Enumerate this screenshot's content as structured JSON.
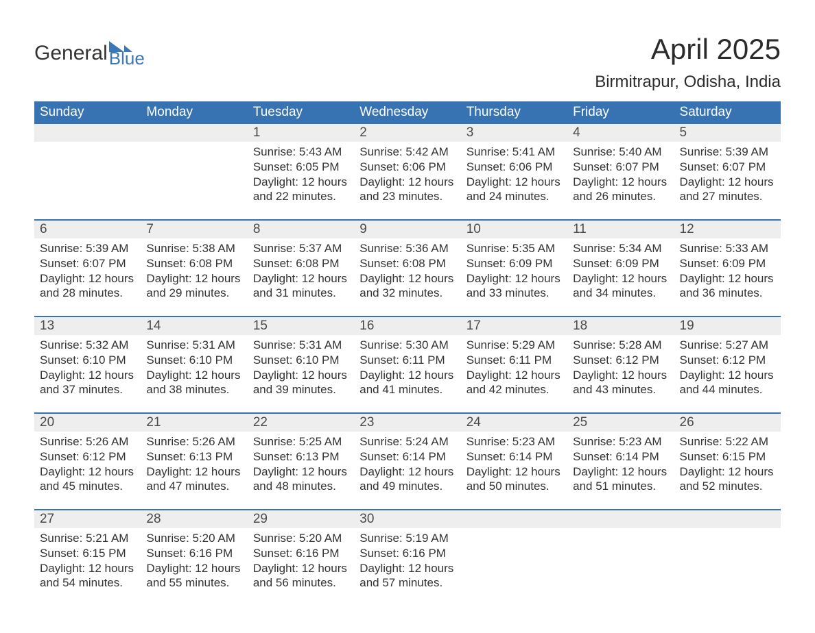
{
  "brand": {
    "word1": "General",
    "word2": "Blue",
    "text_color": "#333333",
    "accent_color": "#3b78b5"
  },
  "header": {
    "title": "April 2025",
    "location": "Birmitrapur, Odisha, India"
  },
  "calendar": {
    "column_headers": [
      "Sunday",
      "Monday",
      "Tuesday",
      "Wednesday",
      "Thursday",
      "Friday",
      "Saturday"
    ],
    "header_bg": "#3773b3",
    "header_text_color": "#ffffff",
    "daynum_bg": "#eeeeee",
    "week_border_color": "#3773b3",
    "body_text_color": "#333333",
    "fontsize_header": 19,
    "fontsize_daynum": 19,
    "fontsize_body": 17,
    "weeks": [
      [
        {
          "day": "",
          "sunrise": "",
          "sunset": "",
          "daylight": ""
        },
        {
          "day": "",
          "sunrise": "",
          "sunset": "",
          "daylight": ""
        },
        {
          "day": "1",
          "sunrise": "Sunrise: 5:43 AM",
          "sunset": "Sunset: 6:05 PM",
          "daylight": "Daylight: 12 hours and 22 minutes."
        },
        {
          "day": "2",
          "sunrise": "Sunrise: 5:42 AM",
          "sunset": "Sunset: 6:06 PM",
          "daylight": "Daylight: 12 hours and 23 minutes."
        },
        {
          "day": "3",
          "sunrise": "Sunrise: 5:41 AM",
          "sunset": "Sunset: 6:06 PM",
          "daylight": "Daylight: 12 hours and 24 minutes."
        },
        {
          "day": "4",
          "sunrise": "Sunrise: 5:40 AM",
          "sunset": "Sunset: 6:07 PM",
          "daylight": "Daylight: 12 hours and 26 minutes."
        },
        {
          "day": "5",
          "sunrise": "Sunrise: 5:39 AM",
          "sunset": "Sunset: 6:07 PM",
          "daylight": "Daylight: 12 hours and 27 minutes."
        }
      ],
      [
        {
          "day": "6",
          "sunrise": "Sunrise: 5:39 AM",
          "sunset": "Sunset: 6:07 PM",
          "daylight": "Daylight: 12 hours and 28 minutes."
        },
        {
          "day": "7",
          "sunrise": "Sunrise: 5:38 AM",
          "sunset": "Sunset: 6:08 PM",
          "daylight": "Daylight: 12 hours and 29 minutes."
        },
        {
          "day": "8",
          "sunrise": "Sunrise: 5:37 AM",
          "sunset": "Sunset: 6:08 PM",
          "daylight": "Daylight: 12 hours and 31 minutes."
        },
        {
          "day": "9",
          "sunrise": "Sunrise: 5:36 AM",
          "sunset": "Sunset: 6:08 PM",
          "daylight": "Daylight: 12 hours and 32 minutes."
        },
        {
          "day": "10",
          "sunrise": "Sunrise: 5:35 AM",
          "sunset": "Sunset: 6:09 PM",
          "daylight": "Daylight: 12 hours and 33 minutes."
        },
        {
          "day": "11",
          "sunrise": "Sunrise: 5:34 AM",
          "sunset": "Sunset: 6:09 PM",
          "daylight": "Daylight: 12 hours and 34 minutes."
        },
        {
          "day": "12",
          "sunrise": "Sunrise: 5:33 AM",
          "sunset": "Sunset: 6:09 PM",
          "daylight": "Daylight: 12 hours and 36 minutes."
        }
      ],
      [
        {
          "day": "13",
          "sunrise": "Sunrise: 5:32 AM",
          "sunset": "Sunset: 6:10 PM",
          "daylight": "Daylight: 12 hours and 37 minutes."
        },
        {
          "day": "14",
          "sunrise": "Sunrise: 5:31 AM",
          "sunset": "Sunset: 6:10 PM",
          "daylight": "Daylight: 12 hours and 38 minutes."
        },
        {
          "day": "15",
          "sunrise": "Sunrise: 5:31 AM",
          "sunset": "Sunset: 6:10 PM",
          "daylight": "Daylight: 12 hours and 39 minutes."
        },
        {
          "day": "16",
          "sunrise": "Sunrise: 5:30 AM",
          "sunset": "Sunset: 6:11 PM",
          "daylight": "Daylight: 12 hours and 41 minutes."
        },
        {
          "day": "17",
          "sunrise": "Sunrise: 5:29 AM",
          "sunset": "Sunset: 6:11 PM",
          "daylight": "Daylight: 12 hours and 42 minutes."
        },
        {
          "day": "18",
          "sunrise": "Sunrise: 5:28 AM",
          "sunset": "Sunset: 6:12 PM",
          "daylight": "Daylight: 12 hours and 43 minutes."
        },
        {
          "day": "19",
          "sunrise": "Sunrise: 5:27 AM",
          "sunset": "Sunset: 6:12 PM",
          "daylight": "Daylight: 12 hours and 44 minutes."
        }
      ],
      [
        {
          "day": "20",
          "sunrise": "Sunrise: 5:26 AM",
          "sunset": "Sunset: 6:12 PM",
          "daylight": "Daylight: 12 hours and 45 minutes."
        },
        {
          "day": "21",
          "sunrise": "Sunrise: 5:26 AM",
          "sunset": "Sunset: 6:13 PM",
          "daylight": "Daylight: 12 hours and 47 minutes."
        },
        {
          "day": "22",
          "sunrise": "Sunrise: 5:25 AM",
          "sunset": "Sunset: 6:13 PM",
          "daylight": "Daylight: 12 hours and 48 minutes."
        },
        {
          "day": "23",
          "sunrise": "Sunrise: 5:24 AM",
          "sunset": "Sunset: 6:14 PM",
          "daylight": "Daylight: 12 hours and 49 minutes."
        },
        {
          "day": "24",
          "sunrise": "Sunrise: 5:23 AM",
          "sunset": "Sunset: 6:14 PM",
          "daylight": "Daylight: 12 hours and 50 minutes."
        },
        {
          "day": "25",
          "sunrise": "Sunrise: 5:23 AM",
          "sunset": "Sunset: 6:14 PM",
          "daylight": "Daylight: 12 hours and 51 minutes."
        },
        {
          "day": "26",
          "sunrise": "Sunrise: 5:22 AM",
          "sunset": "Sunset: 6:15 PM",
          "daylight": "Daylight: 12 hours and 52 minutes."
        }
      ],
      [
        {
          "day": "27",
          "sunrise": "Sunrise: 5:21 AM",
          "sunset": "Sunset: 6:15 PM",
          "daylight": "Daylight: 12 hours and 54 minutes."
        },
        {
          "day": "28",
          "sunrise": "Sunrise: 5:20 AM",
          "sunset": "Sunset: 6:16 PM",
          "daylight": "Daylight: 12 hours and 55 minutes."
        },
        {
          "day": "29",
          "sunrise": "Sunrise: 5:20 AM",
          "sunset": "Sunset: 6:16 PM",
          "daylight": "Daylight: 12 hours and 56 minutes."
        },
        {
          "day": "30",
          "sunrise": "Sunrise: 5:19 AM",
          "sunset": "Sunset: 6:16 PM",
          "daylight": "Daylight: 12 hours and 57 minutes."
        },
        {
          "day": "",
          "sunrise": "",
          "sunset": "",
          "daylight": ""
        },
        {
          "day": "",
          "sunrise": "",
          "sunset": "",
          "daylight": ""
        },
        {
          "day": "",
          "sunrise": "",
          "sunset": "",
          "daylight": ""
        }
      ]
    ]
  }
}
